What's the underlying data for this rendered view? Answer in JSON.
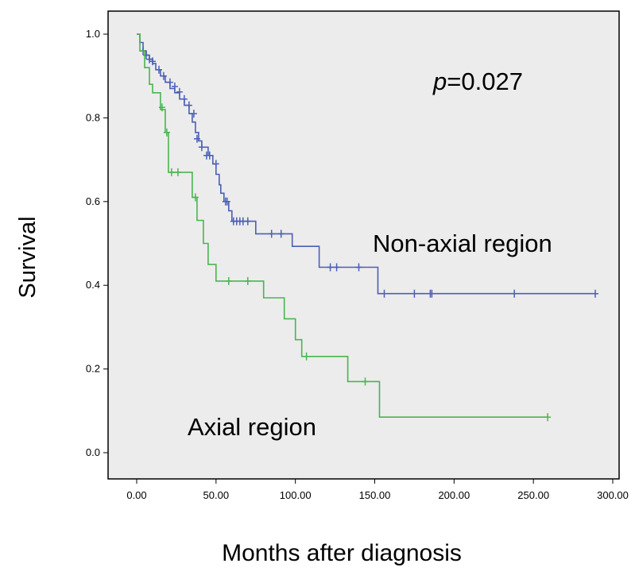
{
  "chart_data": {
    "type": "line",
    "step": true,
    "title": "",
    "xlabel": "Months after diagnosis",
    "ylabel": "Survival",
    "xlim": [
      0,
      300
    ],
    "ylim": [
      0,
      1
    ],
    "x_ticks": [
      "0.00",
      "50.00",
      "100.00",
      "150.00",
      "200.00",
      "250.00",
      "300.00"
    ],
    "y_ticks": [
      "0.0",
      "0.2",
      "0.4",
      "0.6",
      "0.8",
      "1.0"
    ],
    "grid": false,
    "background": "#ececec",
    "annotations": {
      "p_value_italic": "p",
      "p_value_rest": "=0.027",
      "series_label_non_axial": "Non-axial region",
      "series_label_axial": "Axial region"
    },
    "series": [
      {
        "name": "Non-axial region",
        "color": "#4a5fb5",
        "steps": [
          [
            0,
            1.0
          ],
          [
            2,
            0.98
          ],
          [
            4,
            0.96
          ],
          [
            6,
            0.95
          ],
          [
            8,
            0.94
          ],
          [
            10,
            0.93
          ],
          [
            12,
            0.915
          ],
          [
            15,
            0.9
          ],
          [
            18,
            0.885
          ],
          [
            21,
            0.87
          ],
          [
            24,
            0.86
          ],
          [
            27,
            0.845
          ],
          [
            30,
            0.83
          ],
          [
            33,
            0.81
          ],
          [
            35,
            0.79
          ],
          [
            37,
            0.765
          ],
          [
            39,
            0.745
          ],
          [
            41,
            0.73
          ],
          [
            45,
            0.71
          ],
          [
            48,
            0.69
          ],
          [
            50,
            0.665
          ],
          [
            52,
            0.64
          ],
          [
            53,
            0.62
          ],
          [
            55,
            0.6
          ],
          [
            58,
            0.578
          ],
          [
            60,
            0.553
          ],
          [
            75,
            0.523
          ],
          [
            98,
            0.493
          ],
          [
            115,
            0.443
          ],
          [
            152,
            0.38
          ],
          [
            289,
            0.38
          ]
        ],
        "censored": [
          [
            4,
            0.96
          ],
          [
            6,
            0.95
          ],
          [
            8,
            0.94
          ],
          [
            10,
            0.935
          ],
          [
            14,
            0.915
          ],
          [
            17,
            0.9
          ],
          [
            21,
            0.885
          ],
          [
            24,
            0.875
          ],
          [
            27,
            0.862
          ],
          [
            30,
            0.845
          ],
          [
            33,
            0.83
          ],
          [
            36,
            0.81
          ],
          [
            38,
            0.75
          ],
          [
            41,
            0.73
          ],
          [
            44,
            0.71
          ],
          [
            46,
            0.71
          ],
          [
            50,
            0.69
          ],
          [
            56,
            0.6
          ],
          [
            57,
            0.6
          ],
          [
            61,
            0.553
          ],
          [
            63,
            0.553
          ],
          [
            65,
            0.553
          ],
          [
            67,
            0.553
          ],
          [
            70,
            0.553
          ],
          [
            85,
            0.523
          ],
          [
            91,
            0.523
          ],
          [
            122,
            0.443
          ],
          [
            126,
            0.443
          ],
          [
            140,
            0.443
          ],
          [
            156,
            0.38
          ],
          [
            175,
            0.38
          ],
          [
            185,
            0.38
          ],
          [
            186,
            0.38
          ],
          [
            238,
            0.38
          ],
          [
            289,
            0.38
          ]
        ]
      },
      {
        "name": "Axial region",
        "color": "#49b550",
        "steps": [
          [
            0,
            1.0
          ],
          [
            2,
            0.96
          ],
          [
            5,
            0.92
          ],
          [
            8,
            0.88
          ],
          [
            10,
            0.86
          ],
          [
            15,
            0.82
          ],
          [
            18,
            0.765
          ],
          [
            20,
            0.67
          ],
          [
            35,
            0.61
          ],
          [
            38,
            0.555
          ],
          [
            42,
            0.5
          ],
          [
            45,
            0.45
          ],
          [
            50,
            0.41
          ],
          [
            80,
            0.37
          ],
          [
            93,
            0.32
          ],
          [
            100,
            0.27
          ],
          [
            104,
            0.23
          ],
          [
            133,
            0.17
          ],
          [
            153,
            0.085
          ],
          [
            259,
            0.085
          ]
        ],
        "censored": [
          [
            16,
            0.825
          ],
          [
            19,
            0.765
          ],
          [
            22,
            0.67
          ],
          [
            26,
            0.67
          ],
          [
            37,
            0.61
          ],
          [
            58,
            0.41
          ],
          [
            70,
            0.41
          ],
          [
            107,
            0.23
          ],
          [
            144,
            0.17
          ],
          [
            259,
            0.085
          ]
        ]
      }
    ]
  }
}
